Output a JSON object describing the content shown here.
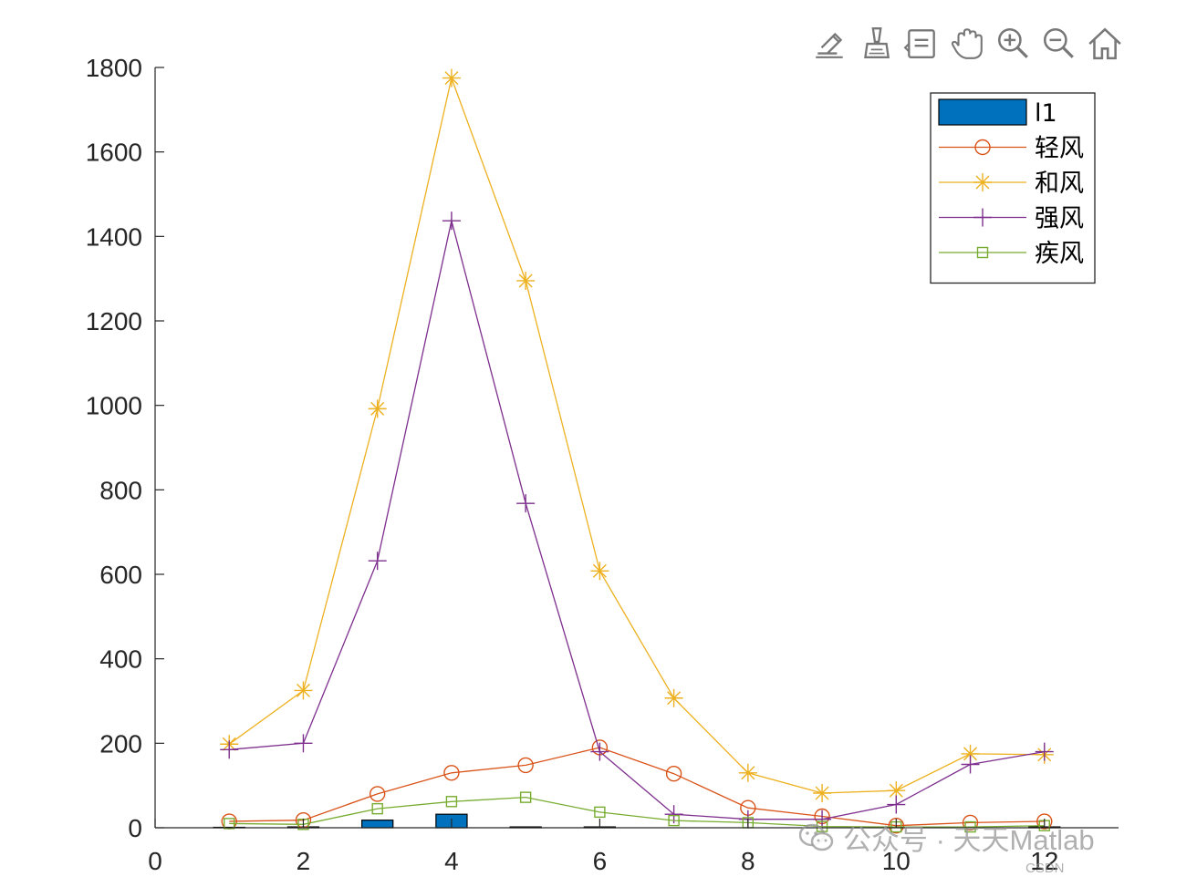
{
  "toolbar": {
    "tools": [
      {
        "icon": "export-icon"
      },
      {
        "icon": "brush-icon"
      },
      {
        "icon": "datatips-icon"
      },
      {
        "icon": "pan-icon"
      },
      {
        "icon": "zoom-in-icon"
      },
      {
        "icon": "zoom-out-icon"
      },
      {
        "icon": "home-icon"
      }
    ]
  },
  "chart_data": {
    "type": "bar",
    "xlim": [
      0,
      13
    ],
    "ylim": [
      0,
      1800
    ],
    "xticks": [
      0,
      2,
      4,
      6,
      8,
      10,
      12
    ],
    "yticks": [
      0,
      200,
      400,
      600,
      800,
      1000,
      1200,
      1400,
      1600,
      1800
    ],
    "grid": false,
    "legend_position": "top-right",
    "bars": {
      "name": "l1",
      "color": "#0072BD",
      "x": [
        1,
        2,
        3,
        4,
        5,
        6,
        7,
        8,
        9,
        10,
        11,
        12
      ],
      "values": [
        1,
        2,
        18,
        32,
        2,
        2,
        0,
        0,
        0,
        0,
        0,
        2
      ]
    },
    "series": [
      {
        "name": "轻风",
        "color": "#D95319",
        "marker": "circle",
        "x": [
          1,
          2,
          3,
          4,
          5,
          6,
          7,
          8,
          9,
          10,
          11,
          12
        ],
        "values": [
          15,
          18,
          80,
          130,
          148,
          190,
          128,
          47,
          27,
          5,
          12,
          15
        ]
      },
      {
        "name": "和风",
        "color": "#EDB120",
        "marker": "asterisk",
        "x": [
          1,
          2,
          3,
          4,
          5,
          6,
          7,
          8,
          9,
          10,
          11,
          12
        ],
        "values": [
          198,
          325,
          992,
          1775,
          1295,
          608,
          307,
          130,
          82,
          88,
          175,
          173
        ]
      },
      {
        "name": "强风",
        "color": "#7E2F8E",
        "marker": "plus",
        "x": [
          1,
          2,
          3,
          4,
          5,
          6,
          7,
          8,
          9,
          10,
          11,
          12
        ],
        "values": [
          185,
          200,
          632,
          1437,
          768,
          180,
          32,
          20,
          20,
          55,
          150,
          180
        ]
      },
      {
        "name": "疾风",
        "color": "#77AC30",
        "marker": "square",
        "x": [
          1,
          2,
          3,
          4,
          5,
          6,
          7,
          8,
          9,
          10,
          11,
          12
        ],
        "values": [
          10,
          8,
          45,
          62,
          72,
          37,
          17,
          12,
          3,
          2,
          2,
          5
        ]
      }
    ]
  },
  "watermark": {
    "text": "公众号 · 天天Matlab",
    "sub": "CSDN"
  }
}
